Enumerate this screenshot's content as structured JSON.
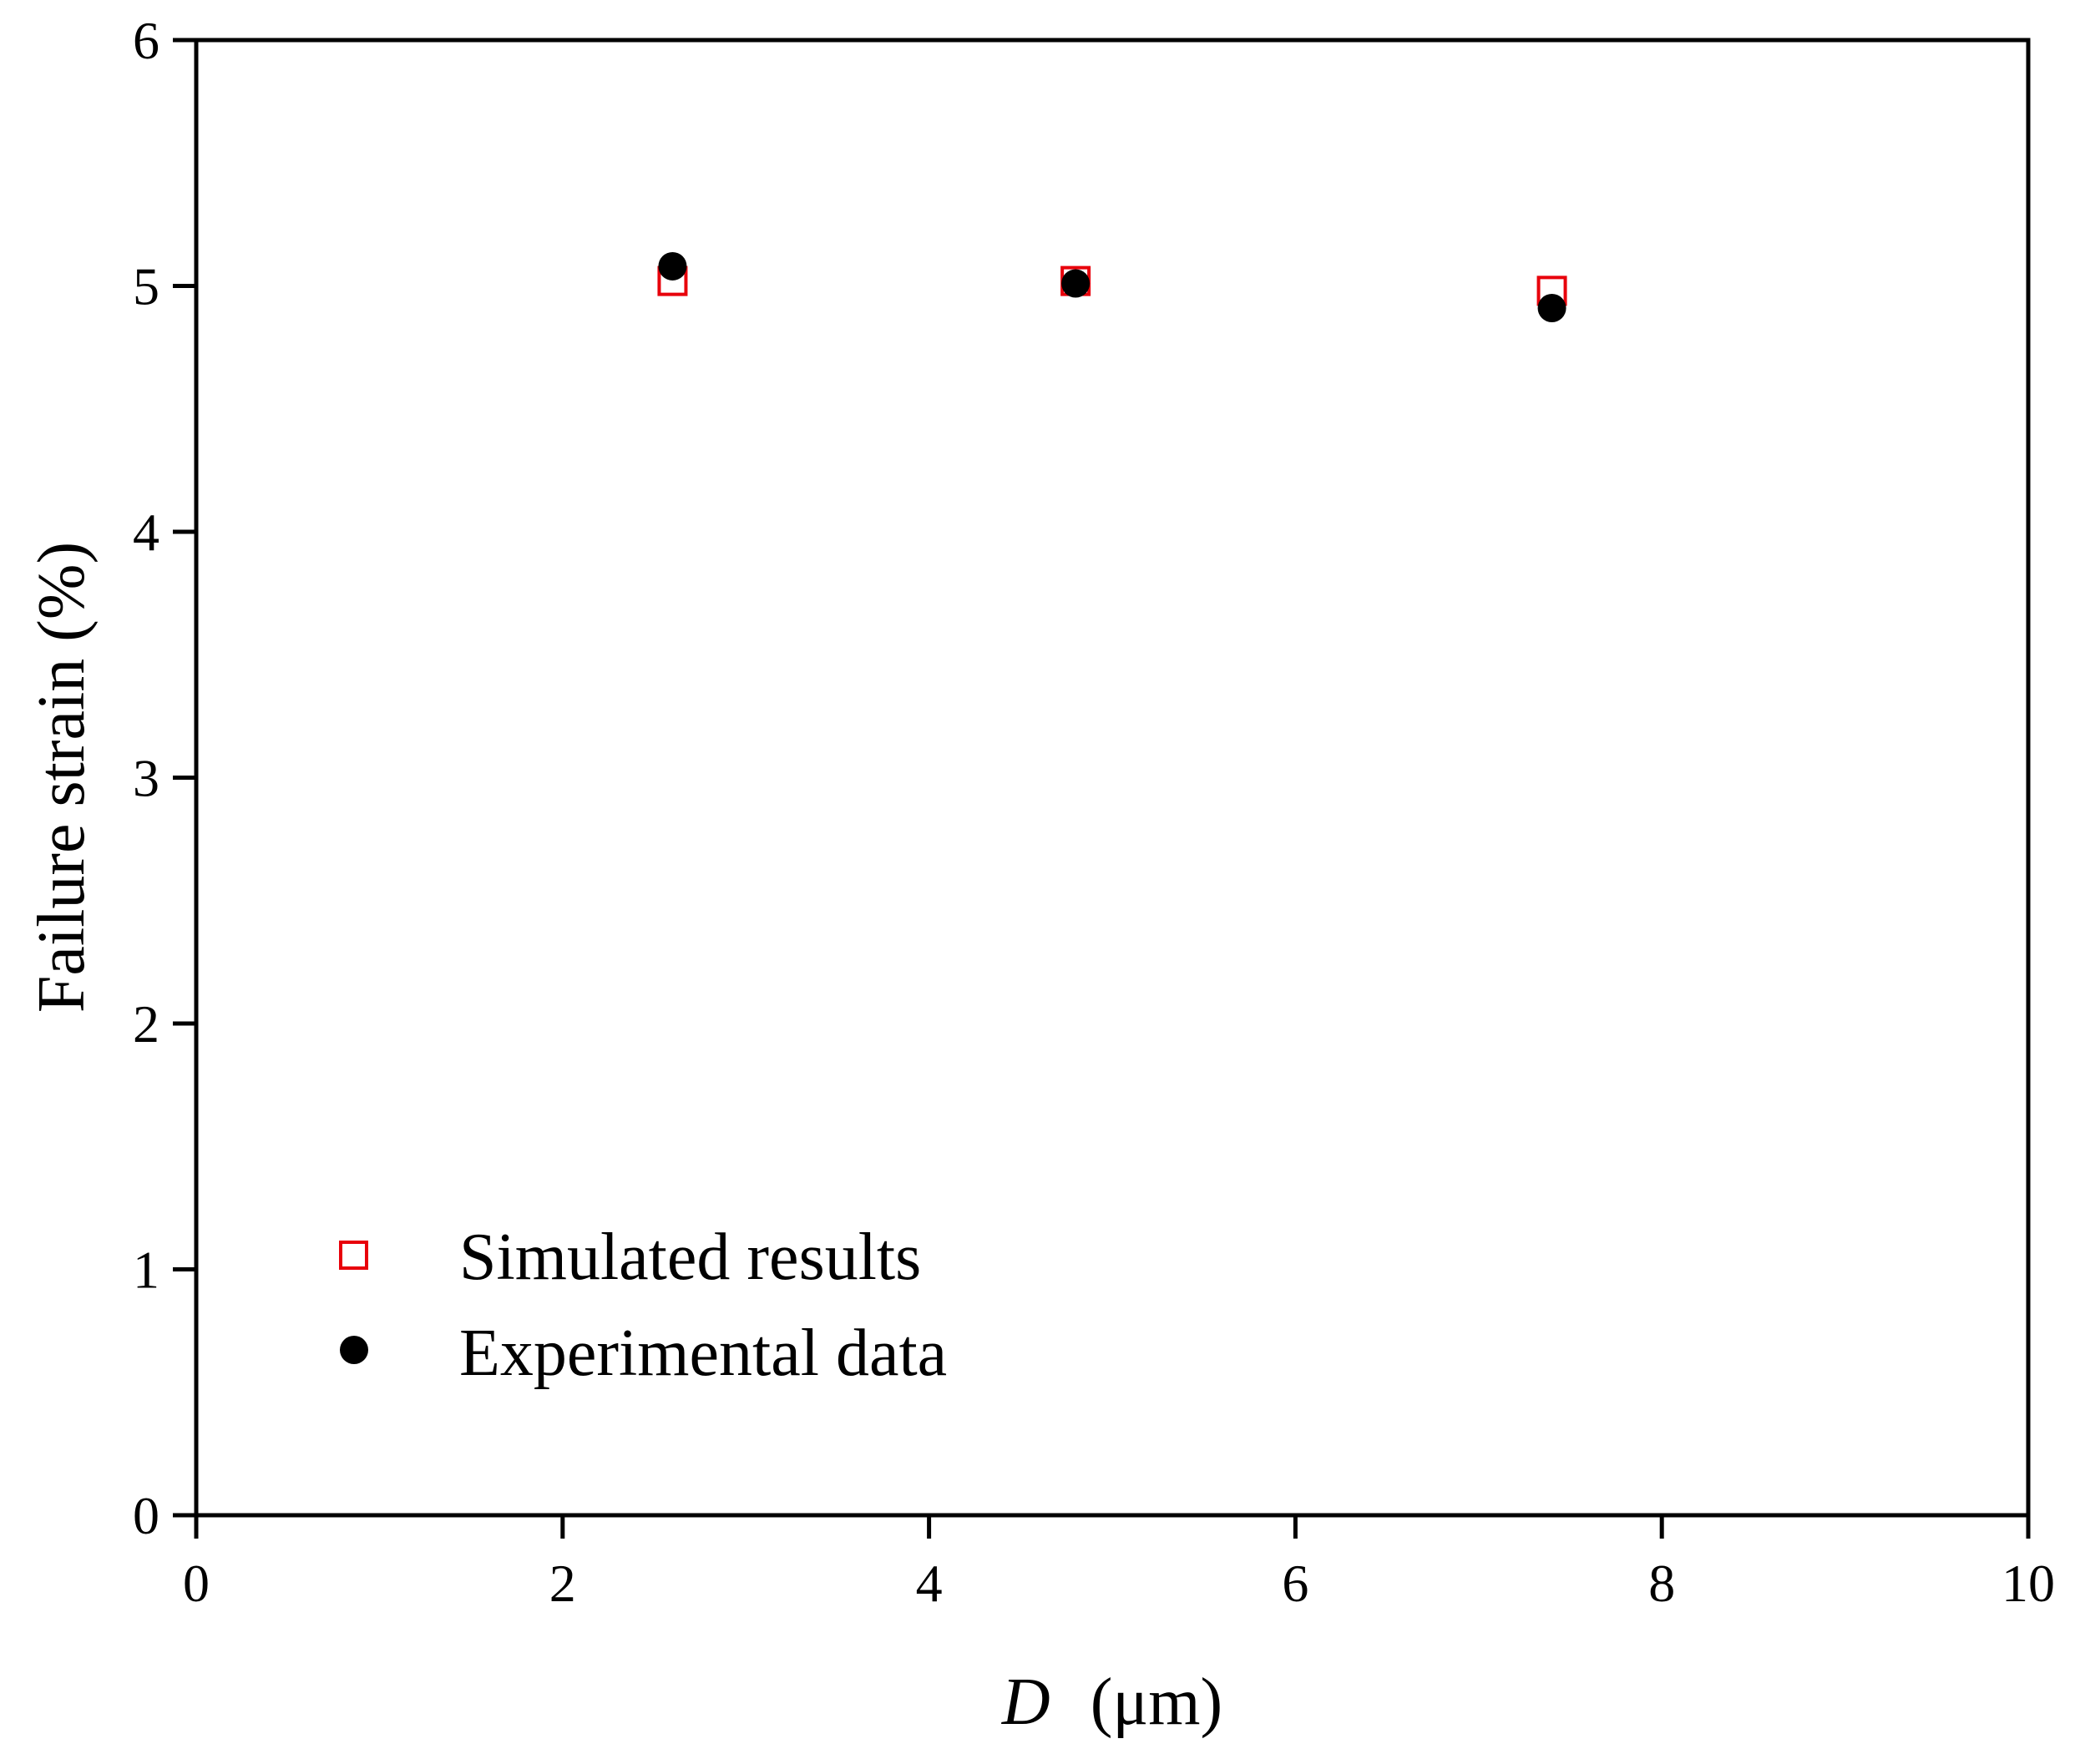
{
  "chart_data": {
    "type": "scatter",
    "title": "",
    "xlabel_italic": "D",
    "xlabel_unit": "(μm)",
    "ylabel": "Failure strain (%)",
    "xlim": [
      0,
      10
    ],
    "ylim": [
      0,
      6
    ],
    "xticks": [
      0,
      2,
      4,
      6,
      8,
      10
    ],
    "yticks": [
      0,
      1,
      2,
      3,
      4,
      5,
      6
    ],
    "grid": false,
    "legend_position": "bottom-left",
    "series": [
      {
        "name": "Simulated results",
        "marker": "open-square",
        "color": "#e8000b",
        "x": [
          2.6,
          4.8,
          7.4
        ],
        "y": [
          5.02,
          5.02,
          4.98
        ]
      },
      {
        "name": "Experimental data",
        "marker": "filled-circle",
        "color": "#000000",
        "x": [
          2.6,
          4.8,
          7.4
        ],
        "y": [
          5.08,
          5.01,
          4.91
        ]
      }
    ]
  }
}
